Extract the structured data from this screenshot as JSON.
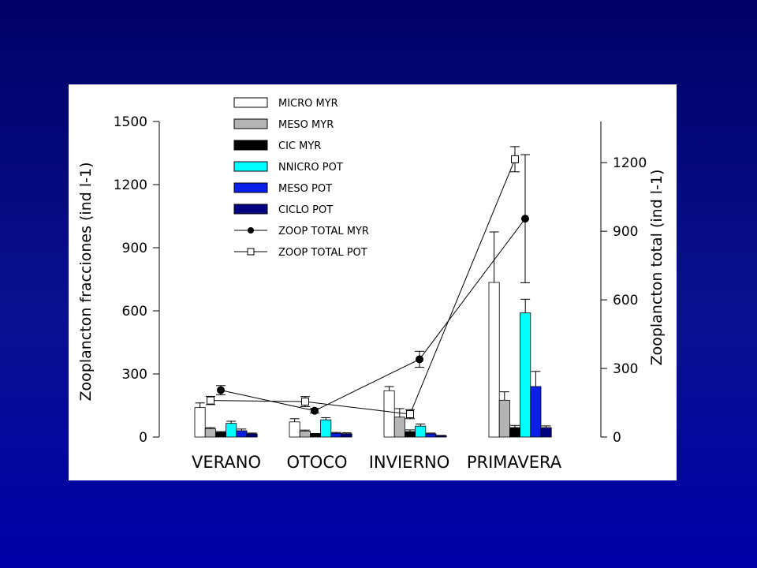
{
  "chart_data": {
    "type": "bar",
    "categories": [
      "VERANO",
      "OTOCO",
      "INVIERNO",
      "PRIMAVERA"
    ],
    "series": [
      {
        "name": "MICRO MYR",
        "values": [
          140,
          72,
          220,
          735
        ],
        "errors": [
          22,
          15,
          20,
          240
        ],
        "color": "#ffffff"
      },
      {
        "name": "MESO MYR",
        "values": [
          40,
          28,
          95,
          175
        ],
        "errors": [
          5,
          5,
          40,
          40
        ],
        "color": "#b4b4b4"
      },
      {
        "name": "CIC MYR",
        "values": [
          22,
          14,
          26,
          45
        ],
        "errors": [
          4,
          3,
          8,
          10
        ],
        "color": "#000000"
      },
      {
        "name": "NNICRO POT",
        "values": [
          65,
          82,
          52,
          590
        ],
        "errors": [
          10,
          10,
          10,
          65
        ],
        "color": "#00ffff"
      },
      {
        "name": "MESO POT",
        "values": [
          30,
          18,
          15,
          240
        ],
        "errors": [
          8,
          4,
          4,
          72
        ],
        "color": "#0a20e8"
      },
      {
        "name": "CICLO POT",
        "values": [
          15,
          16,
          6,
          45
        ],
        "errors": [
          4,
          4,
          2,
          8
        ],
        "color": "#000080"
      }
    ],
    "lines": [
      {
        "name": "ZOOP TOTAL MYR",
        "marker": "filled-circle",
        "values": [
          205,
          115,
          340,
          955
        ],
        "errors": [
          20,
          10,
          35,
          280
        ]
      },
      {
        "name": "ZOOP TOTAL POT",
        "marker": "open-square",
        "values": [
          160,
          155,
          100,
          1215
        ],
        "errors": [
          18,
          22,
          20,
          55
        ]
      }
    ],
    "ylabel": "Zooplancton fracciones (ind l-1)",
    "ylabel_right": "Zooplancton total (ind l-1)",
    "ylim": [
      0,
      1500
    ],
    "yticks": [
      "0",
      "300",
      "600",
      "900",
      "1200",
      "1500"
    ],
    "ylim_right": [
      0,
      1380
    ],
    "yticks_right": [
      "0",
      "300",
      "600",
      "900",
      "1200"
    ],
    "legend": "top-center"
  }
}
